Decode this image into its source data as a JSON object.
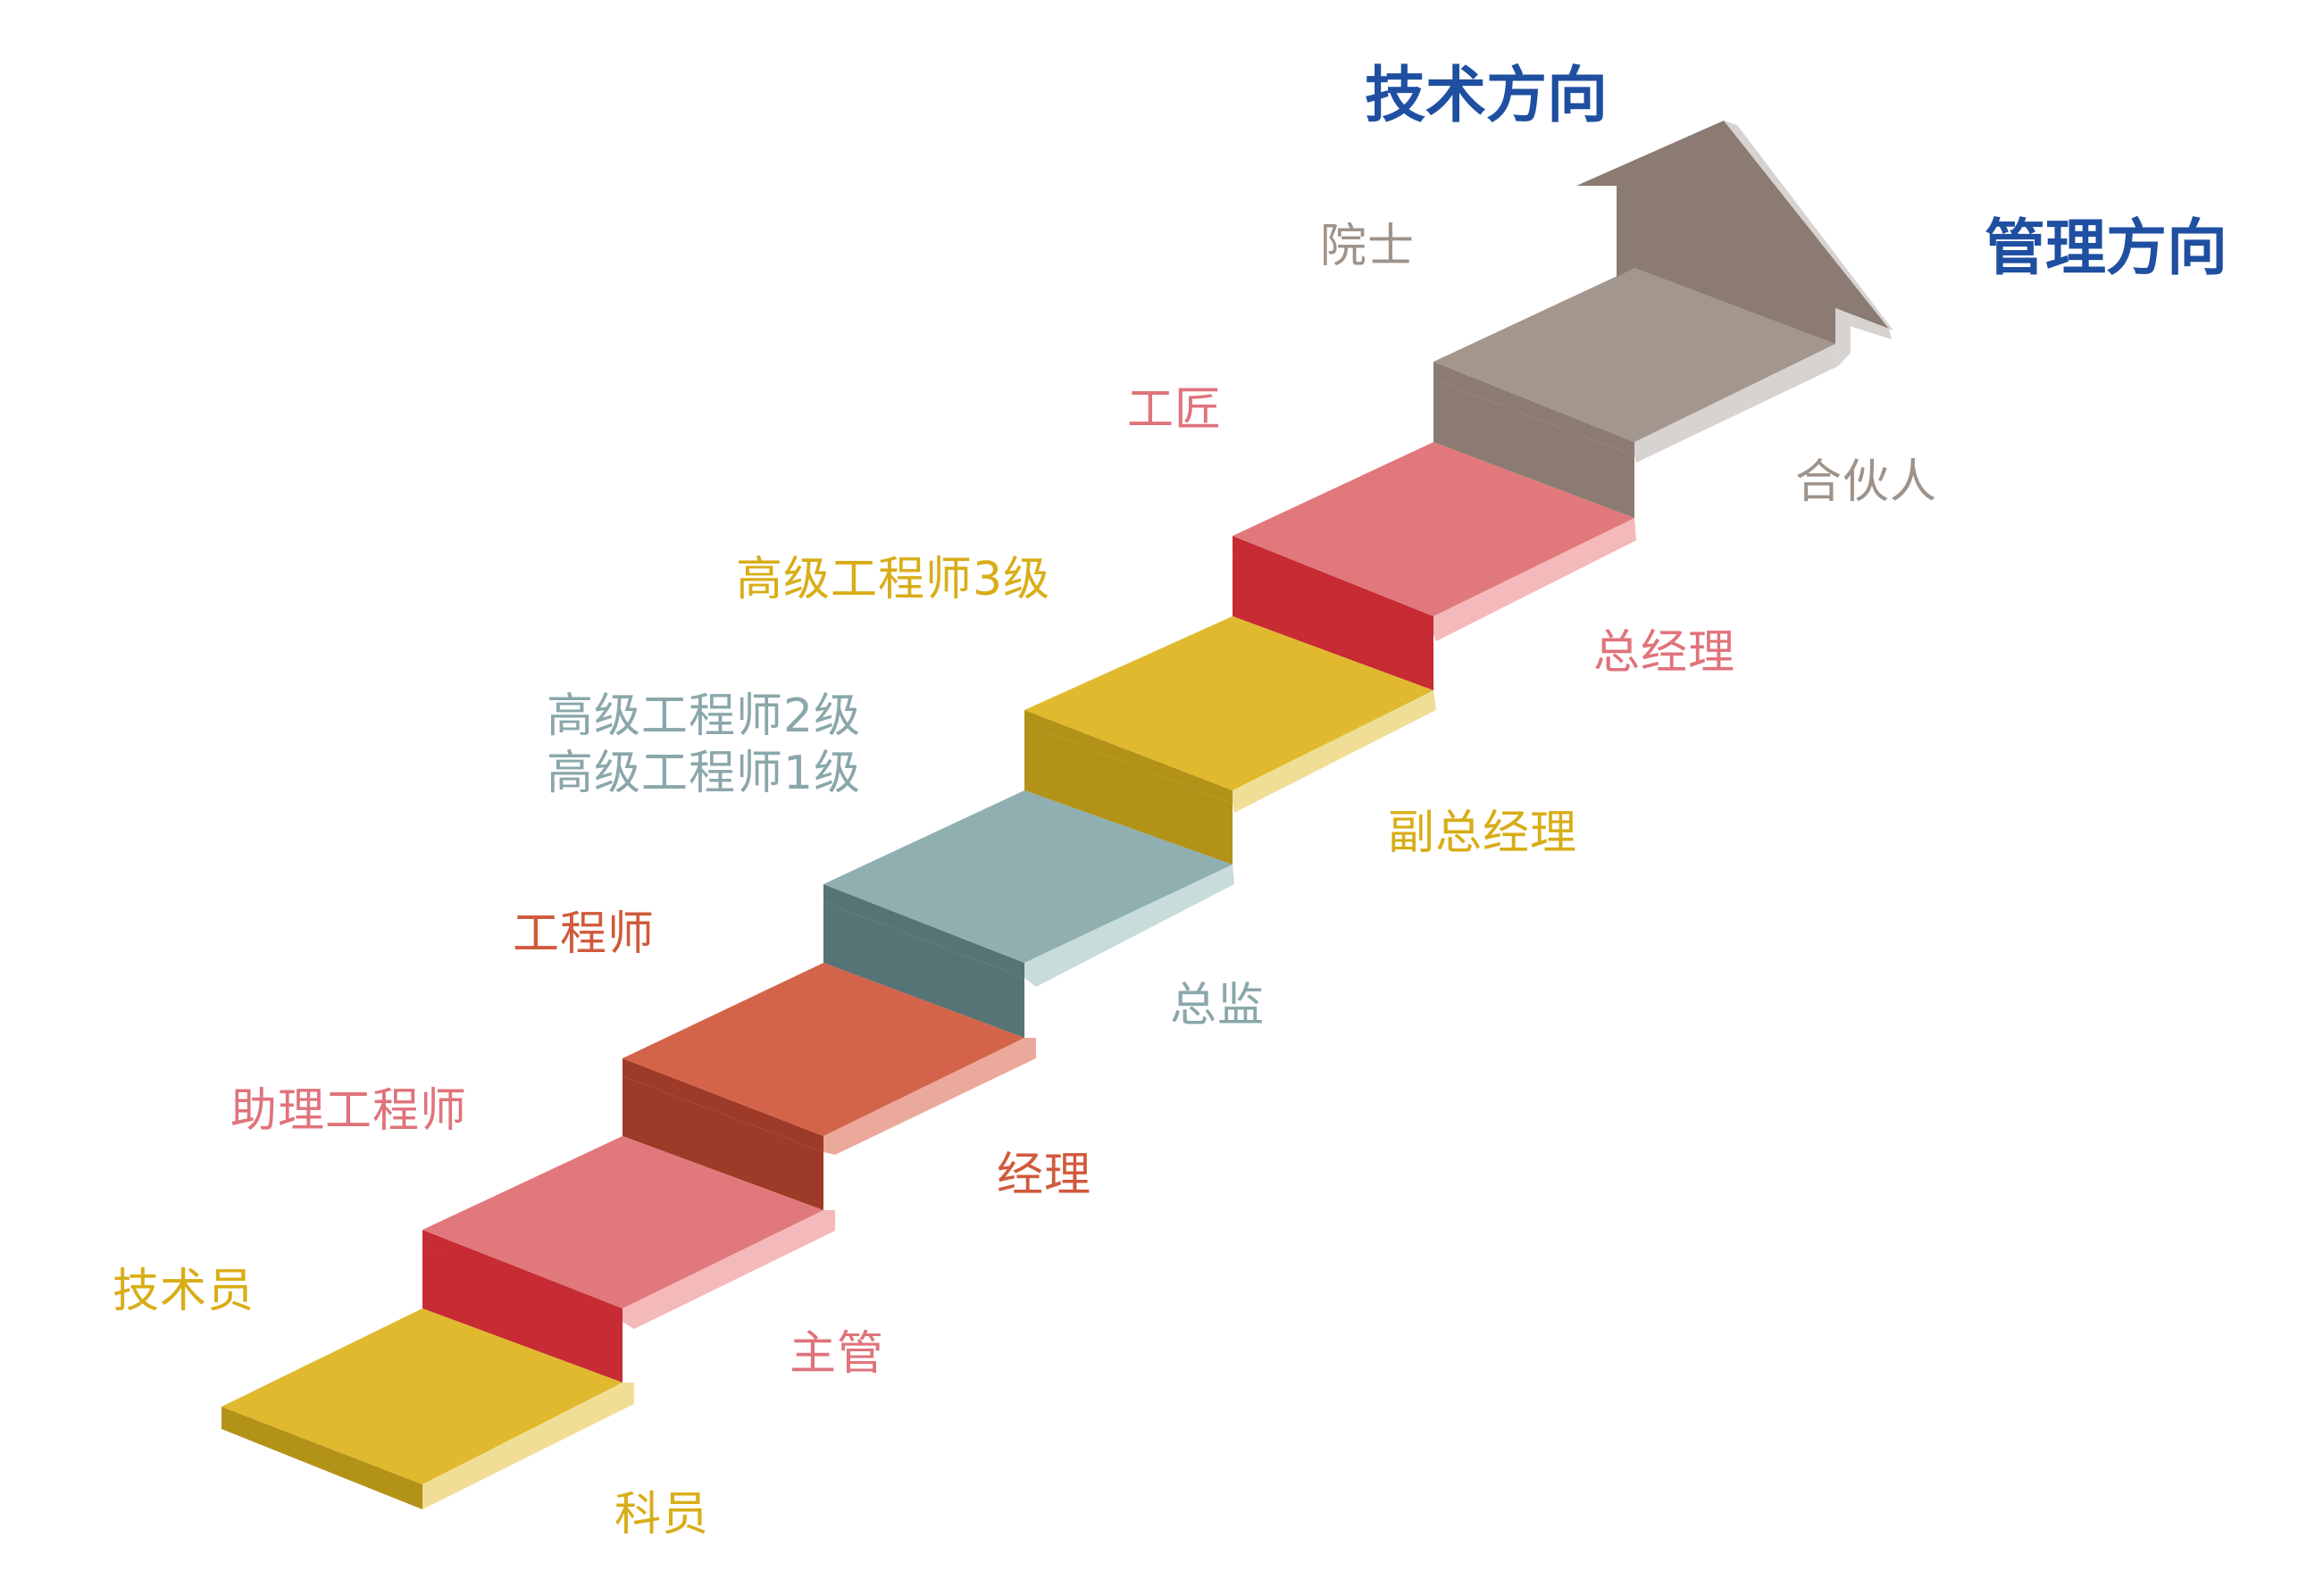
{
  "directions": {
    "technical": "技术方向",
    "management": "管理方向"
  },
  "technical_levels": [
    "院士",
    "工匠",
    "高级工程师3级",
    "高级工程师2级",
    "高级工程师1级",
    "工程师",
    "助理工程师",
    "技术员"
  ],
  "management_levels": [
    "合伙人",
    "总经理",
    "副总经理",
    "总监",
    "经理",
    "主管",
    "科员"
  ],
  "colors": {
    "direction_title": "#1f4fa0",
    "yellow": "#e0b92e",
    "yellow_dark": "#b39218",
    "yellow_light": "#f1de96",
    "pink": "#e1787b",
    "red_dark": "#c72b34",
    "pink_light": "#f4b9bb",
    "orange": "#d3644a",
    "orange_dark": "#9d3a28",
    "orange_light": "#eba99b",
    "teal": "#8fafb0",
    "teal_dark": "#567375",
    "teal_light": "#c8dcdc",
    "gray": "#a3968d",
    "gray_dark": "#8b7b72",
    "gray_light": "#d6d3d1",
    "label_tech_top": "#9e938b",
    "label_yellow": "#d8ad18",
    "label_pink": "#e0737b",
    "label_orange": "#d05a3c",
    "label_teal": "#8aa7aa",
    "label_gray": "#9e938b"
  }
}
